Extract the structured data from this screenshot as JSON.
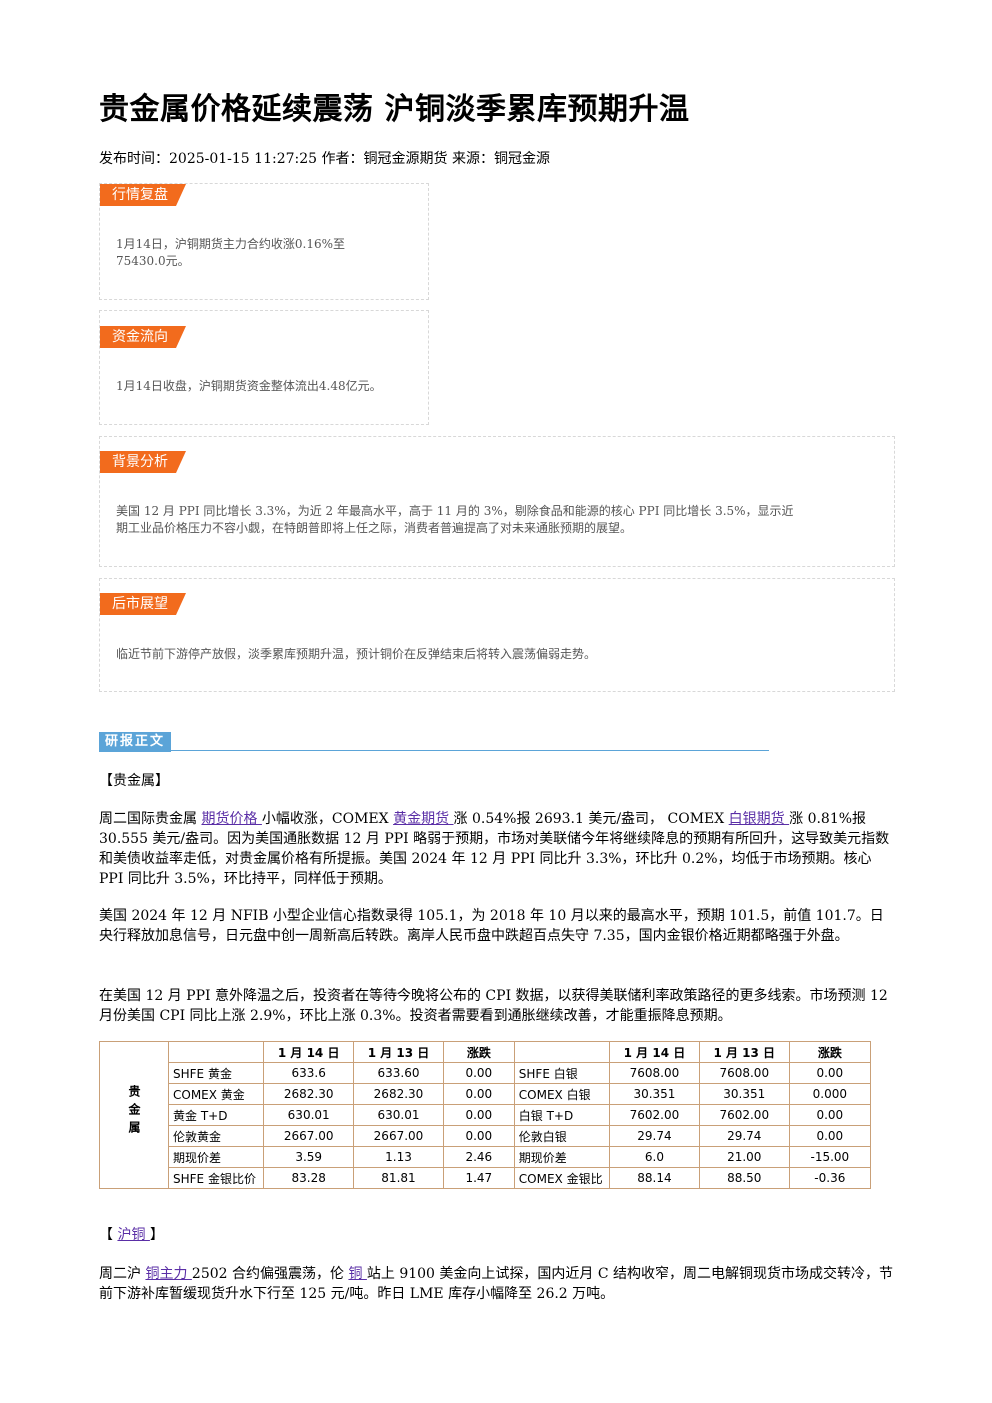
{
  "title": "贵金属价格延续震荡 沪铜淡季累库预期升温",
  "meta": "发布时间：2025-01-15 11:27:25 作者：铜冠金源期货 来源：铜冠金源",
  "sections": {
    "market_review": {
      "tag": "行情复盘",
      "line1": "1月14日，沪铜期货主力合约收涨0.16%至",
      "line2": "75430.0元。"
    },
    "fund_flow": {
      "tag": "资金流向",
      "text": "1月14日收盘，沪铜期货资金整体流出4.48亿元。"
    },
    "background": {
      "tag": "背景分析",
      "line1": "美国 12 月 PPI 同比增长 3.3%，为近 2 年最高水平，高于 11 月的 3%，剔除食品和能源的核心 PPI 同比增长 3.5%，显示近",
      "line2": "期工业品价格压力不容小觑，在特朗普即将上任之际，消费者普遍提高了对未来通胀预期的展望。"
    },
    "outlook": {
      "tag": "后市展望",
      "text": "临近节前下游停产放假，淡季累库预期升温，预计铜价在反弹结束后将转入震荡偏弱走势。"
    }
  },
  "report": {
    "tag": "研报正文",
    "precious_head": "【贵金属】",
    "p1": {
      "t1": "周二国际贵金属 ",
      "link1": "期货价格 ",
      "t2": "小幅收涨，COMEX ",
      "link2": "黄金期货 ",
      "t3": "涨 0.54%报 2693.1 美元/盎司， COMEX ",
      "link3": "白银期货 ",
      "t4": "涨 0.81%报 30.555 美元/盎司。因为美国通胀数据 12 月 PPI 略弱于预期，市场对美联储今年将继续降息的预期有所回升，这导致美元指数和美债收益率走低，对贵金属价格有所提振。美国 2024 年 12 月 PPI 同比升 3.3%，环比升 0.2%，均低于市场预期。核心 PPI 同比升 3.5%，环比持平，同样低于预期。"
    },
    "p2": "美国 2024 年 12 月 NFIB 小型企业信心指数录得 105.1，为 2018 年 10 月以来的最高水平，预期 101.5，前值 101.7。日央行释放加息信号，日元盘中创一周新高后转跌。离岸人民币盘中跌超百点失守 7.35，国内金银价格近期都略强于外盘。",
    "p3": "在美国 12 月 PPI 意外降温之后，投资者在等待今晚将公布的 CPI 数据，以获得美联储利率政策路径的更多线索。市场预测 12 月份美国 CPI 同比上涨 2.9%，环比上涨 0.3%。投资者需要看到通胀继续改善，才能重振降息预期。",
    "copper_head": {
      "open": "【 ",
      "link": "沪铜 ",
      "close": "】"
    },
    "p4": {
      "t1": "周二沪 ",
      "link1": "铜主力 ",
      "t2": "2502 合约偏强震荡，伦 ",
      "link2": "铜 ",
      "t3": "站上 9100 美金向上试探，国内近月 C 结构收窄，周二电解铜现货市场成交转冷，节前下游补库暂缓现货升水下行至 125 元/吨。昨日 LME 库存小幅降至 26.2 万吨。"
    }
  },
  "table": {
    "side_label": "贵金属",
    "headers": [
      "1 月 14 日",
      "1 月 13 日",
      "涨跌"
    ],
    "rows": [
      {
        "l_name": "SHFE 黄金",
        "l_v1": "633.6",
        "l_v2": "633.60",
        "l_chg": "0.00",
        "r_name": "SHFE 白银",
        "r_v1": "7608.00",
        "r_v2": "7608.00",
        "r_chg": "0.00"
      },
      {
        "l_name": "COMEX 黄金",
        "l_v1": "2682.30",
        "l_v2": "2682.30",
        "l_chg": "0.00",
        "r_name": "COMEX 白银",
        "r_v1": "30.351",
        "r_v2": "30.351",
        "r_chg": "0.000"
      },
      {
        "l_name": "黄金 T+D",
        "l_v1": "630.01",
        "l_v2": "630.01",
        "l_chg": "0.00",
        "r_name": "白银 T+D",
        "r_v1": "7602.00",
        "r_v2": "7602.00",
        "r_chg": "0.00"
      },
      {
        "l_name": "伦敦黄金",
        "l_v1": "2667.00",
        "l_v2": "2667.00",
        "l_chg": "0.00",
        "r_name": "伦敦白银",
        "r_v1": "29.74",
        "r_v2": "29.74",
        "r_chg": "0.00"
      },
      {
        "l_name": "期现价差",
        "l_v1": "3.59",
        "l_v2": "1.13",
        "l_chg": "2.46",
        "r_name": "期现价差",
        "r_v1": "6.0",
        "r_v2": "21.00",
        "r_chg": "-15.00"
      },
      {
        "l_name": "SHFE 金银比价",
        "l_v1": "83.28",
        "l_v2": "81.81",
        "l_chg": "1.47",
        "r_name": "COMEX 金银比",
        "r_v1": "88.14",
        "r_v2": "88.50",
        "r_chg": "-0.36"
      }
    ]
  }
}
